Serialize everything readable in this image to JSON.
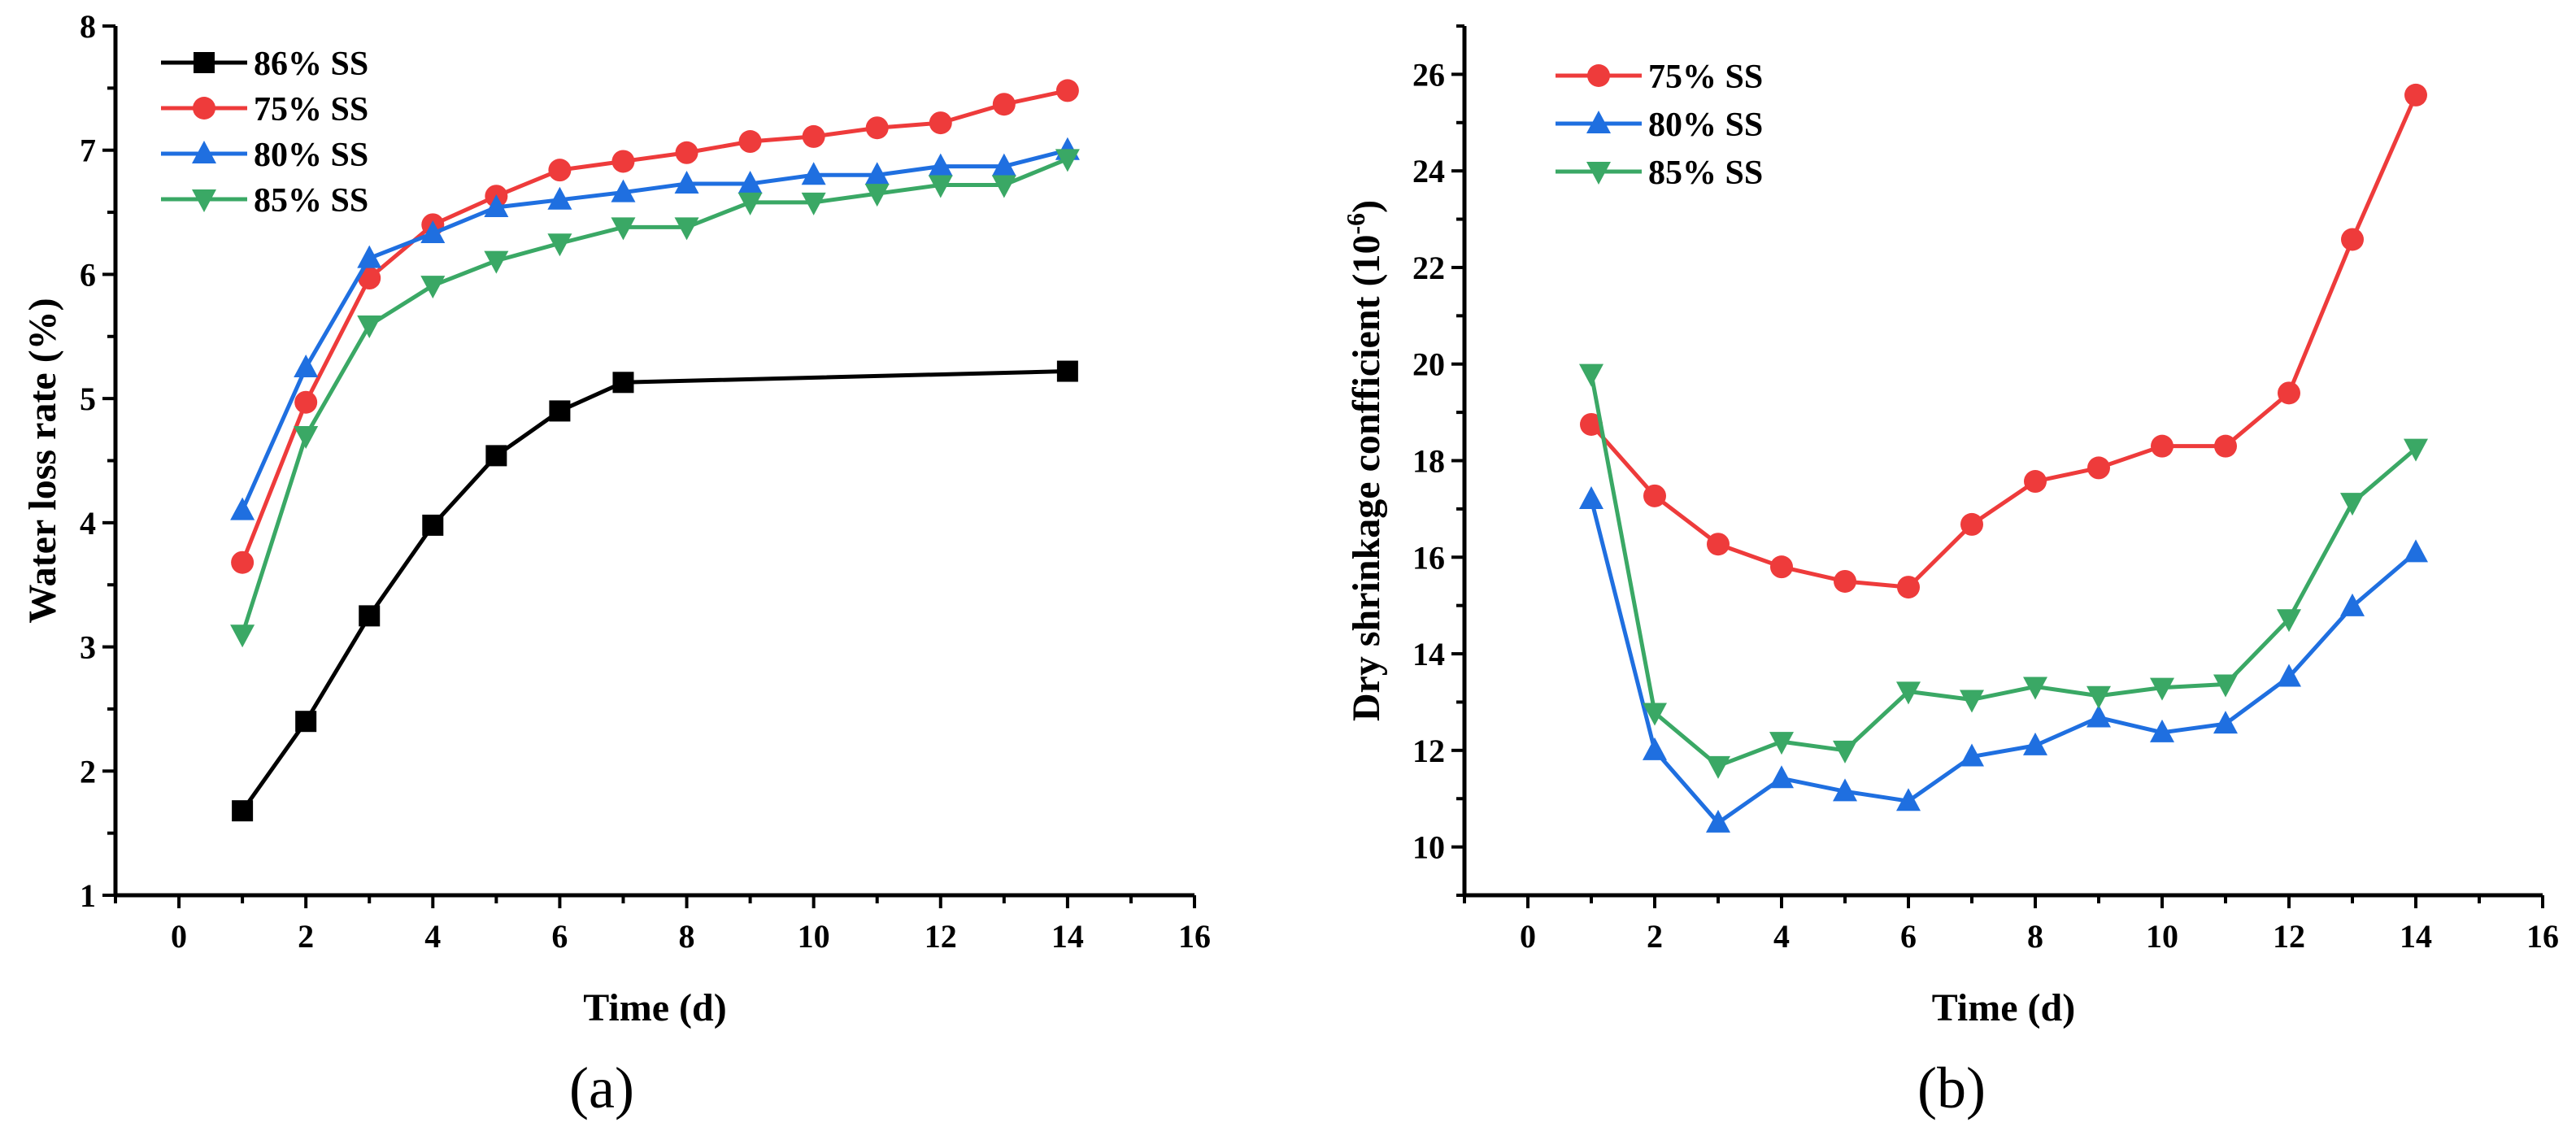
{
  "chart_data": [
    {
      "type": "line",
      "panel_label": "(a)",
      "xlabel": "Time (d)",
      "ylabel": "Water loss rate (%)",
      "xlim": [
        -1,
        16
      ],
      "ylim": [
        1,
        8
      ],
      "xticks": [
        0,
        2,
        4,
        6,
        8,
        10,
        12,
        14,
        16
      ],
      "yticks": [
        1,
        2,
        3,
        4,
        5,
        6,
        7,
        8
      ],
      "legend_position": "top-left",
      "series": [
        {
          "name": "86% SS",
          "color": "#000000",
          "marker": "square",
          "x": [
            1,
            2,
            3,
            4,
            5,
            6,
            7,
            14
          ],
          "y": [
            1.68,
            2.4,
            3.25,
            3.98,
            4.54,
            4.9,
            5.13,
            5.22
          ]
        },
        {
          "name": "75% SS",
          "color": "#ee3b3b",
          "marker": "circle",
          "x": [
            1,
            2,
            3,
            4,
            5,
            6,
            7,
            8,
            9,
            10,
            11,
            12,
            13,
            14
          ],
          "y": [
            3.68,
            4.97,
            5.97,
            6.4,
            6.63,
            6.84,
            6.91,
            6.98,
            7.07,
            7.11,
            7.18,
            7.22,
            7.37,
            7.48
          ]
        },
        {
          "name": "80% SS",
          "color": "#1f6fe0",
          "marker": "triangle-up",
          "x": [
            1,
            2,
            3,
            4,
            5,
            6,
            7,
            8,
            9,
            10,
            11,
            12,
            13,
            14
          ],
          "y": [
            4.1,
            5.25,
            6.13,
            6.33,
            6.54,
            6.6,
            6.66,
            6.73,
            6.73,
            6.8,
            6.8,
            6.87,
            6.87,
            7.0
          ]
        },
        {
          "name": "85% SS",
          "color": "#3aa865",
          "marker": "triangle-down",
          "x": [
            1,
            2,
            3,
            4,
            5,
            6,
            7,
            8,
            9,
            10,
            11,
            12,
            13,
            14
          ],
          "y": [
            3.1,
            4.7,
            5.59,
            5.91,
            6.11,
            6.25,
            6.38,
            6.38,
            6.58,
            6.58,
            6.65,
            6.72,
            6.72,
            6.93
          ]
        }
      ]
    },
    {
      "type": "line",
      "panel_label": "(b)",
      "xlabel": "Time (d)",
      "ylabel": "Dry shrinkage confficient (10",
      "ylabel_exponent": "-6",
      "ylabel_suffix": ")",
      "xlim": [
        -1,
        16
      ],
      "ylim": [
        9,
        27
      ],
      "xticks": [
        0,
        2,
        4,
        6,
        8,
        10,
        12,
        14,
        16
      ],
      "yticks": [
        10,
        12,
        14,
        16,
        18,
        20,
        22,
        24,
        26
      ],
      "legend_position": "top-left",
      "series": [
        {
          "name": "75% SS",
          "color": "#ee3b3b",
          "marker": "circle",
          "x": [
            1,
            2,
            3,
            4,
            5,
            6,
            7,
            8,
            9,
            10,
            11,
            12,
            13,
            14
          ],
          "y": [
            18.75,
            17.27,
            16.27,
            15.8,
            15.5,
            15.38,
            16.68,
            17.57,
            17.85,
            18.3,
            18.3,
            19.4,
            22.58,
            25.57
          ]
        },
        {
          "name": "80% SS",
          "color": "#1f6fe0",
          "marker": "triangle-up",
          "x": [
            1,
            2,
            3,
            4,
            5,
            6,
            7,
            8,
            9,
            10,
            11,
            12,
            13,
            14
          ],
          "y": [
            17.2,
            12.0,
            10.5,
            11.42,
            11.15,
            10.95,
            11.87,
            12.1,
            12.68,
            12.37,
            12.55,
            13.52,
            14.98,
            16.1
          ]
        },
        {
          "name": "85% SS",
          "color": "#3aa865",
          "marker": "triangle-down",
          "x": [
            1,
            2,
            3,
            4,
            5,
            6,
            7,
            8,
            9,
            10,
            11,
            12,
            13,
            14
          ],
          "y": [
            19.8,
            12.78,
            11.68,
            12.18,
            12.0,
            13.22,
            13.05,
            13.32,
            13.13,
            13.3,
            13.37,
            14.72,
            17.13,
            18.25
          ]
        }
      ]
    }
  ]
}
